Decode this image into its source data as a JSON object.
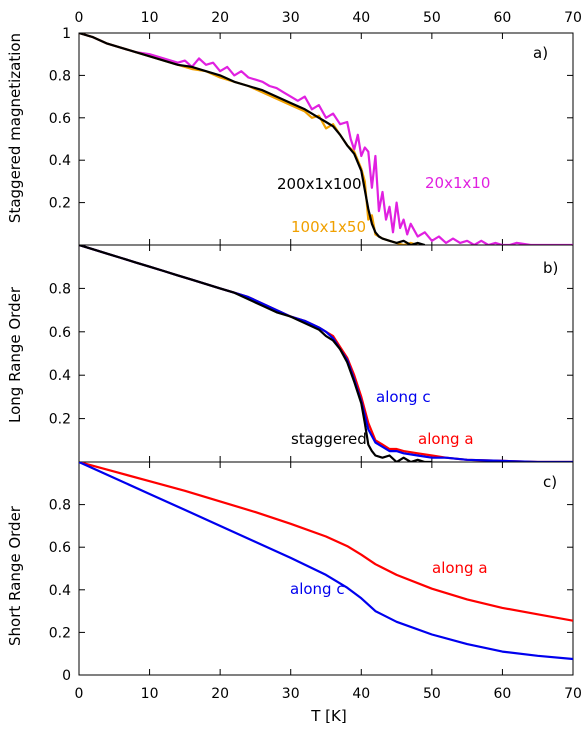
{
  "chart_data": [
    {
      "type": "line",
      "panel_label": "a)",
      "ylabel": "Staggered magnetization",
      "xlim": [
        0,
        70
      ],
      "ylim": [
        0,
        1.0
      ],
      "x_ticks": [
        "0",
        "10",
        "20",
        "30",
        "40",
        "50",
        "60",
        "70"
      ],
      "y_ticks": [
        "0.2",
        "0.4",
        "0.6",
        "0.8",
        "1"
      ],
      "y_tick_values": [
        0.2,
        0.4,
        0.6,
        0.8,
        1.0
      ],
      "grid": false,
      "series": [
        {
          "name": "20x1x10",
          "color": "#e020e0",
          "x": [
            0,
            2,
            4,
            6,
            8,
            10,
            12,
            14,
            15,
            16,
            17,
            18,
            19,
            20,
            21,
            22,
            23,
            24,
            25,
            26,
            27,
            28,
            29,
            30,
            31,
            32,
            33,
            34,
            35,
            36,
            37,
            38,
            38.5,
            39,
            39.5,
            40,
            40.5,
            41,
            41.5,
            42,
            42.5,
            43,
            43.5,
            44,
            44.5,
            45,
            45.5,
            46,
            46.5,
            47,
            48,
            49,
            50,
            51,
            52,
            53,
            54,
            55,
            56,
            57,
            58,
            59,
            60,
            61,
            62,
            64,
            66,
            68,
            70
          ],
          "y": [
            1.0,
            0.98,
            0.95,
            0.93,
            0.91,
            0.9,
            0.88,
            0.86,
            0.87,
            0.84,
            0.88,
            0.85,
            0.86,
            0.82,
            0.84,
            0.8,
            0.82,
            0.79,
            0.78,
            0.77,
            0.75,
            0.74,
            0.72,
            0.7,
            0.68,
            0.7,
            0.64,
            0.66,
            0.6,
            0.62,
            0.57,
            0.58,
            0.5,
            0.45,
            0.52,
            0.42,
            0.46,
            0.44,
            0.27,
            0.42,
            0.16,
            0.25,
            0.12,
            0.18,
            0.06,
            0.2,
            0.08,
            0.12,
            0.05,
            0.1,
            0.04,
            0.06,
            0.02,
            0.04,
            0.01,
            0.03,
            0.01,
            0.02,
            0.0,
            0.02,
            0.0,
            0.01,
            0.0,
            0.0,
            0.01,
            0.0,
            0.0,
            0.0,
            0.0
          ]
        },
        {
          "name": "100x1x50",
          "color": "#f0a000",
          "x": [
            0,
            2,
            4,
            6,
            8,
            10,
            12,
            14,
            16,
            18,
            20,
            22,
            24,
            26,
            28,
            30,
            32,
            33,
            34,
            35,
            36,
            37,
            38,
            39,
            40,
            40.5,
            41,
            41.5,
            42,
            43,
            44,
            45,
            46,
            47,
            48
          ],
          "y": [
            1.0,
            0.98,
            0.95,
            0.93,
            0.91,
            0.89,
            0.87,
            0.85,
            0.83,
            0.82,
            0.79,
            0.77,
            0.75,
            0.72,
            0.69,
            0.66,
            0.63,
            0.6,
            0.61,
            0.55,
            0.57,
            0.52,
            0.47,
            0.44,
            0.36,
            0.3,
            0.12,
            0.14,
            0.05,
            0.03,
            0.02,
            0.01,
            0.0,
            0.01,
            0.0
          ]
        },
        {
          "name": "200x1x100",
          "color": "#000000",
          "x": [
            0,
            2,
            4,
            6,
            8,
            10,
            12,
            14,
            16,
            18,
            20,
            22,
            24,
            26,
            28,
            30,
            32,
            34,
            35,
            36,
            37,
            38,
            39,
            40,
            40.5,
            41,
            41.5,
            42,
            42.5,
            43,
            44,
            45,
            46,
            47,
            48,
            49
          ],
          "y": [
            1.0,
            0.98,
            0.95,
            0.93,
            0.91,
            0.89,
            0.87,
            0.85,
            0.84,
            0.82,
            0.8,
            0.77,
            0.75,
            0.73,
            0.7,
            0.67,
            0.64,
            0.6,
            0.58,
            0.56,
            0.52,
            0.47,
            0.43,
            0.35,
            0.26,
            0.17,
            0.1,
            0.06,
            0.04,
            0.03,
            0.02,
            0.01,
            0.02,
            0.0,
            0.01,
            0.0
          ]
        }
      ],
      "annotations": [
        {
          "text": "200x1x100",
          "color": "#000000"
        },
        {
          "text": "20x1x10",
          "color": "#e020e0"
        },
        {
          "text": "100x1x50",
          "color": "#f0a000"
        }
      ]
    },
    {
      "type": "line",
      "panel_label": "b)",
      "ylabel": "Long Range Order",
      "xlim": [
        0,
        70
      ],
      "ylim": [
        0,
        1.0
      ],
      "y_ticks": [
        "0.2",
        "0.4",
        "0.6",
        "0.8"
      ],
      "y_tick_values": [
        0.2,
        0.4,
        0.6,
        0.8
      ],
      "grid": false,
      "series": [
        {
          "name": "along a",
          "color": "#ff0000",
          "x": [
            0,
            2,
            4,
            6,
            8,
            10,
            12,
            14,
            16,
            18,
            20,
            22,
            24,
            26,
            28,
            30,
            32,
            34,
            35,
            36,
            37,
            38,
            39,
            40,
            41,
            42,
            43,
            44,
            45,
            46,
            48,
            50,
            52,
            55,
            60,
            65,
            70
          ],
          "y": [
            1.0,
            0.98,
            0.96,
            0.94,
            0.92,
            0.9,
            0.88,
            0.86,
            0.84,
            0.82,
            0.8,
            0.78,
            0.76,
            0.73,
            0.7,
            0.67,
            0.65,
            0.62,
            0.6,
            0.58,
            0.53,
            0.48,
            0.4,
            0.3,
            0.18,
            0.1,
            0.08,
            0.06,
            0.06,
            0.05,
            0.04,
            0.03,
            0.02,
            0.01,
            0.005,
            0.0,
            0.0
          ]
        },
        {
          "name": "along c",
          "color": "#0000ee",
          "x": [
            0,
            2,
            4,
            6,
            8,
            10,
            12,
            14,
            16,
            18,
            20,
            22,
            24,
            26,
            28,
            30,
            32,
            34,
            35,
            36,
            37,
            38,
            39,
            40,
            41,
            42,
            43,
            44,
            45,
            46,
            48,
            50,
            52,
            55,
            60,
            65,
            70
          ],
          "y": [
            1.0,
            0.98,
            0.96,
            0.94,
            0.92,
            0.9,
            0.88,
            0.86,
            0.84,
            0.82,
            0.8,
            0.78,
            0.76,
            0.73,
            0.7,
            0.67,
            0.65,
            0.62,
            0.6,
            0.57,
            0.52,
            0.47,
            0.38,
            0.28,
            0.15,
            0.09,
            0.07,
            0.05,
            0.05,
            0.04,
            0.03,
            0.02,
            0.02,
            0.01,
            0.005,
            0.0,
            0.0
          ]
        },
        {
          "name": "staggered",
          "color": "#000000",
          "x": [
            0,
            2,
            4,
            6,
            8,
            10,
            12,
            14,
            16,
            18,
            20,
            22,
            24,
            26,
            28,
            30,
            32,
            34,
            35,
            36,
            37,
            38,
            39,
            40,
            40.5,
            41,
            41.5,
            42,
            43,
            44,
            45,
            46,
            47,
            48,
            49,
            50
          ],
          "y": [
            1.0,
            0.98,
            0.96,
            0.94,
            0.92,
            0.9,
            0.88,
            0.86,
            0.84,
            0.82,
            0.8,
            0.78,
            0.75,
            0.72,
            0.69,
            0.67,
            0.64,
            0.61,
            0.58,
            0.56,
            0.52,
            0.46,
            0.37,
            0.27,
            0.18,
            0.08,
            0.05,
            0.03,
            0.02,
            0.03,
            0.0,
            0.02,
            0.0,
            0.01,
            0.0,
            0.0
          ]
        }
      ],
      "annotations": [
        {
          "text": "along c",
          "color": "#0000ee"
        },
        {
          "text": "along a",
          "color": "#ff0000"
        },
        {
          "text": "staggered",
          "color": "#000000"
        }
      ]
    },
    {
      "type": "line",
      "panel_label": "c)",
      "ylabel": "Short Range Order",
      "xlabel": "T [K]",
      "xlim": [
        0,
        70
      ],
      "ylim": [
        0,
        1.0
      ],
      "x_ticks": [
        "0",
        "10",
        "20",
        "30",
        "40",
        "50",
        "60",
        "70"
      ],
      "y_ticks": [
        "0",
        "0.2",
        "0.4",
        "0.6",
        "0.8"
      ],
      "y_tick_values": [
        0,
        0.2,
        0.4,
        0.6,
        0.8
      ],
      "grid": false,
      "series": [
        {
          "name": "along a",
          "color": "#ff0000",
          "x": [
            0,
            5,
            10,
            15,
            20,
            25,
            30,
            35,
            38,
            40,
            42,
            45,
            50,
            55,
            60,
            65,
            70
          ],
          "y": [
            1.0,
            0.955,
            0.91,
            0.865,
            0.815,
            0.765,
            0.71,
            0.65,
            0.605,
            0.565,
            0.52,
            0.47,
            0.405,
            0.355,
            0.315,
            0.285,
            0.255
          ]
        },
        {
          "name": "along c",
          "color": "#0000ee",
          "x": [
            0,
            5,
            10,
            15,
            20,
            25,
            30,
            35,
            38,
            40,
            42,
            45,
            50,
            55,
            60,
            65,
            70
          ],
          "y": [
            1.0,
            0.925,
            0.85,
            0.775,
            0.7,
            0.625,
            0.55,
            0.47,
            0.41,
            0.36,
            0.3,
            0.25,
            0.19,
            0.145,
            0.11,
            0.09,
            0.075
          ]
        }
      ],
      "annotations": [
        {
          "text": "along a",
          "color": "#ff0000"
        },
        {
          "text": "along c",
          "color": "#0000ee"
        }
      ]
    }
  ]
}
